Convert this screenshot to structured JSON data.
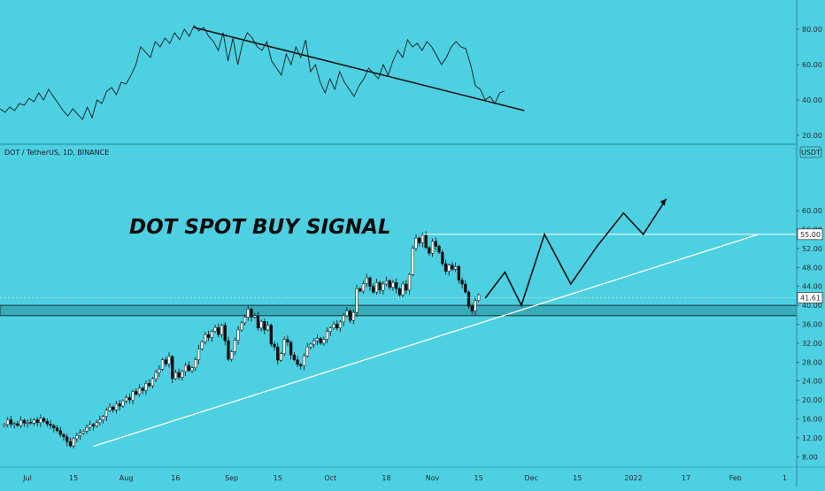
{
  "symbol_header": "DOT / TetherUS, 1D, BINANCE",
  "currency": "USDT",
  "annotation_title": "DOT SPOT BUY SIGNAL",
  "colors": {
    "background": "#4dd0e1",
    "candle_up": "#ffffff",
    "candle_down": "#111111",
    "trendline_upper": "#111111",
    "trendline_lower": "#ffffff",
    "projection": "#111111",
    "price_axis_bg": "#4dd0e1"
  },
  "chart_data": [
    {
      "type": "line",
      "title": "",
      "ylim": [
        20,
        90
      ],
      "yticks": [
        "20.00",
        "40.00",
        "60.00",
        "80.00"
      ],
      "grid": false,
      "series": [
        {
          "values": [
            35,
            33,
            36,
            34,
            38,
            37,
            41,
            39,
            44,
            40,
            46,
            42,
            38,
            34,
            31,
            35,
            32,
            29,
            36,
            30,
            40,
            38,
            45,
            47,
            43,
            50,
            49,
            54,
            60,
            70,
            67,
            64,
            73,
            70,
            75,
            72,
            78,
            74,
            80,
            76,
            82,
            79,
            81,
            76,
            73,
            68,
            78,
            62,
            75,
            60,
            72,
            78,
            75,
            70,
            68,
            73,
            62,
            58,
            54,
            66,
            60,
            70,
            64,
            74,
            56,
            60,
            50,
            44,
            52,
            46,
            56,
            50,
            46,
            42,
            48,
            52,
            58,
            55,
            52,
            60,
            54,
            62,
            68,
            64,
            74,
            70,
            72,
            68,
            73,
            70,
            65,
            60,
            64,
            70,
            73,
            70,
            69,
            60,
            48,
            46,
            40,
            42,
            38,
            44,
            45
          ]
        }
      ],
      "trendline": {
        "from": [
          36,
          81
        ],
        "to": [
          106,
          35
        ]
      }
    },
    {
      "type": "candlestick",
      "title": "",
      "xlabel": "",
      "ylabel": "",
      "ylim": [
        6,
        64
      ],
      "yticks": [
        "8.00",
        "12.00",
        "16.00",
        "20.00",
        "24.00",
        "28.00",
        "32.00",
        "36.00",
        "40.00",
        "44.00",
        "48.00",
        "52.00",
        "56.00",
        "60.00"
      ],
      "xticks": [
        {
          "day": 0,
          "label": "Jul"
        },
        {
          "day": 14,
          "label": "15"
        },
        {
          "day": 30,
          "label": "Aug"
        },
        {
          "day": 45,
          "label": "16"
        },
        {
          "day": 62,
          "label": "Sep"
        },
        {
          "day": 76,
          "label": "15"
        },
        {
          "day": 92,
          "label": "Oct"
        },
        {
          "day": 109,
          "label": "18"
        },
        {
          "day": 123,
          "label": "Nov"
        },
        {
          "day": 137,
          "label": "15"
        },
        {
          "day": 153,
          "label": "Dec"
        },
        {
          "day": 167,
          "label": "15"
        },
        {
          "day": 184,
          "label": "2022"
        },
        {
          "day": 200,
          "label": "17"
        },
        {
          "day": 215,
          "label": "Feb"
        },
        {
          "day": 230,
          "label": "1"
        }
      ],
      "closes": [
        14.8,
        15.8,
        14.9,
        15.0,
        14.6,
        15.7,
        15.1,
        15.3,
        15.1,
        15.8,
        15.2,
        16.1,
        15.5,
        14.9,
        14.6,
        14.1,
        13.5,
        12.7,
        12.2,
        11.2,
        10.3,
        11.8,
        12.5,
        13.0,
        13.4,
        14.2,
        14.8,
        14.5,
        15.2,
        15.8,
        16.5,
        17.8,
        18.5,
        17.9,
        19.2,
        18.7,
        19.8,
        20.5,
        20.0,
        21.8,
        21.2,
        22.5,
        22.0,
        23.5,
        23.0,
        24.5,
        25.8,
        26.5,
        28.5,
        27.6,
        29.2,
        24.5,
        25.8,
        24.8,
        26.0,
        27.3,
        26.2,
        26.8,
        28.5,
        30.8,
        32.3,
        33.8,
        33.2,
        34.5,
        35.3,
        33.8,
        35.8,
        32.5,
        28.6,
        30.2,
        32.6,
        34.8,
        36.3,
        37.5,
        39.2,
        37.5,
        37.8,
        35.2,
        36.6,
        34.8,
        35.8,
        31.8,
        31.2,
        28.4,
        29.8,
        32.8,
        32.2,
        29.5,
        28.5,
        27.5,
        27.2,
        29.3,
        31.2,
        31.8,
        32.5,
        33.0,
        32.0,
        32.8,
        34.5,
        35.2,
        36.0,
        35.2,
        36.5,
        37.8,
        38.8,
        36.8,
        38.5,
        43.5,
        43.0,
        44.6,
        45.8,
        44.0,
        42.8,
        44.8,
        43.2,
        44.5,
        45.2,
        43.8,
        44.8,
        43.5,
        42.2,
        44.5,
        43.2,
        46.5,
        52.0,
        54.2,
        53.2,
        54.8,
        52.2,
        51.0,
        53.5,
        52.5,
        51.2,
        48.8,
        47.2,
        48.5,
        47.6,
        48.2,
        45.3,
        44.5,
        42.8,
        39.8,
        38.8,
        41.0,
        42.2
      ],
      "hline_level": 55.0,
      "support_zone": [
        37.8,
        40.0
      ],
      "trendline": {
        "from": [
          20,
          10.2
        ],
        "to": [
          178,
          55.0
        ]
      },
      "projection": [
        [
          146,
          41.5
        ],
        [
          152,
          47.0
        ],
        [
          157,
          40.0
        ],
        [
          164,
          55.0
        ],
        [
          172,
          44.5
        ],
        [
          180,
          52.5
        ],
        [
          188,
          59.5
        ],
        [
          194,
          55.0
        ],
        [
          201,
          62.5
        ]
      ],
      "last_price_label": "41.61",
      "level_label": "55.00"
    }
  ]
}
